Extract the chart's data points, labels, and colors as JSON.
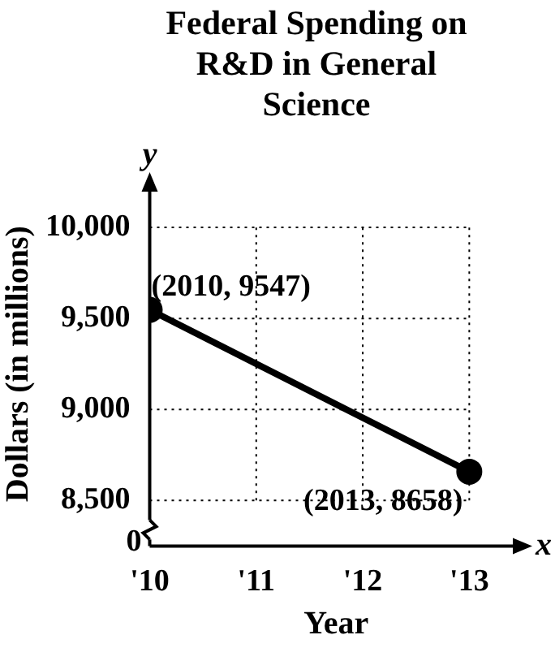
{
  "chart_data": {
    "type": "line",
    "title": "Federal Spending on R&D in General Science",
    "xlabel": "Year",
    "ylabel": "Dollars (in millions)",
    "x": [
      2010,
      2013
    ],
    "series": [
      {
        "color": "#000000",
        "values": [
          9547,
          8658
        ]
      }
    ],
    "xlim": [
      2010,
      2013.5
    ],
    "xticks": [
      {
        "value": 2010,
        "label": "'10"
      },
      {
        "value": 2011,
        "label": "'11"
      },
      {
        "value": 2012,
        "label": "'12"
      },
      {
        "value": 2013,
        "label": "'13"
      }
    ],
    "ylim": [
      8250,
      10250
    ],
    "yticks": [
      {
        "value": 8500,
        "label": "8,500"
      },
      {
        "value": 9000,
        "label": "9,000"
      },
      {
        "value": 9500,
        "label": "9,500"
      },
      {
        "value": 10000,
        "label": "10,000"
      }
    ],
    "annotations": [
      {
        "text": "(2010, 9547)",
        "x": 2010,
        "y": 9547
      },
      {
        "text": "(2013, 8658)",
        "x": 2013,
        "y": 8658
      },
      "0",
      "x",
      "y"
    ],
    "grid": true,
    "legend": false,
    "marker": "circle",
    "line_style": "solid"
  }
}
